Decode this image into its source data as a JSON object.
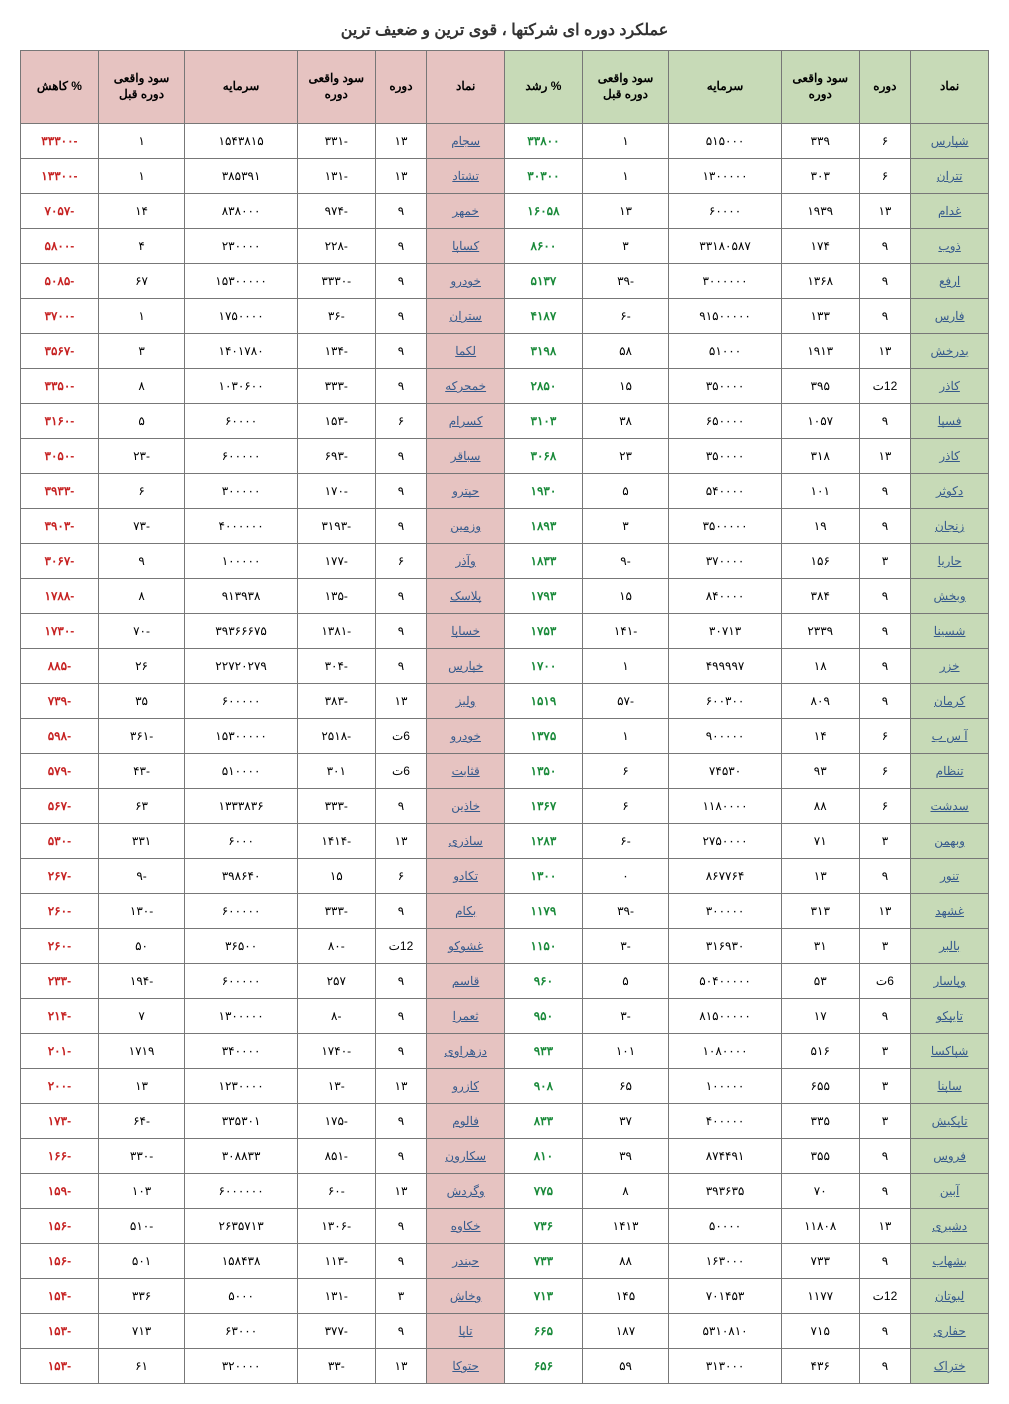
{
  "title": "عملکرد دوره ای شرکتها ، قوی ترین و ضعیف ترین",
  "headers": {
    "symbol": "نماد",
    "period": "دوره",
    "real_profit_period": "سود واقعی دوره",
    "capital": "سرمایه",
    "real_profit_prev": "سود واقعی دوره قبل",
    "growth_pct": "% رشد",
    "decline_pct": "% کاهش"
  },
  "rows": [
    {
      "g_sym": "شپارس",
      "g_per": "۶",
      "g_prof": "۳۳۹",
      "g_cap": "۵۱۵۰۰۰",
      "g_prev": "۱",
      "g_pct": "۳۳۸۰۰",
      "r_sym": "سجام",
      "r_per": "۱۳",
      "r_prof": "-۳۳۱",
      "r_cap": "۱۵۴۳۸۱۵",
      "r_prev": "۱",
      "r_pct": "-۳۳۳۰۰"
    },
    {
      "g_sym": "تتران",
      "g_per": "۶",
      "g_prof": "۳۰۳",
      "g_cap": "۱۳۰۰۰۰۰",
      "g_prev": "۱",
      "g_pct": "۳۰۳۰۰",
      "r_sym": "تشتاد",
      "r_per": "۱۳",
      "r_prof": "-۱۳۱",
      "r_cap": "۳۸۵۳۹۱",
      "r_prev": "۱",
      "r_pct": "-۱۳۳۰۰"
    },
    {
      "g_sym": "غدام",
      "g_per": "۱۳",
      "g_prof": "۱۹۳۹",
      "g_cap": "۶۰۰۰۰",
      "g_prev": "۱۳",
      "g_pct": "۱۶۰۵۸",
      "r_sym": "خمهر",
      "r_per": "۹",
      "r_prof": "-۹۷۴",
      "r_cap": "۸۳۸۰۰۰",
      "r_prev": "۱۴",
      "r_pct": "-۷۰۵۷"
    },
    {
      "g_sym": "ذوب",
      "g_per": "۹",
      "g_prof": "۱۷۴",
      "g_cap": "۳۳۱۸۰۵۸۷",
      "g_prev": "۳",
      "g_pct": "۸۶۰۰",
      "r_sym": "کساپا",
      "r_per": "۹",
      "r_prof": "-۲۲۸",
      "r_cap": "۲۳۰۰۰۰",
      "r_prev": "۴",
      "r_pct": "-۵۸۰۰"
    },
    {
      "g_sym": "ارفع",
      "g_per": "۹",
      "g_prof": "۱۳۶۸",
      "g_cap": "۳۰۰۰۰۰۰",
      "g_prev": "-۳۹",
      "g_pct": "۵۱۳۷",
      "r_sym": "خودرو",
      "r_per": "۹",
      "r_prof": "-۳۳۳۰",
      "r_cap": "۱۵۳۰۰۰۰۰",
      "r_prev": "۶۷",
      "r_pct": "-۵۰۸۵"
    },
    {
      "g_sym": "فارس",
      "g_per": "۹",
      "g_prof": "۱۳۳",
      "g_cap": "۹۱۵۰۰۰۰۰",
      "g_prev": "-۶",
      "g_pct": "۴۱۸۷",
      "r_sym": "ستران",
      "r_per": "۹",
      "r_prof": "-۳۶",
      "r_cap": "۱۷۵۰۰۰۰",
      "r_prev": "۱",
      "r_pct": "-۳۷۰۰"
    },
    {
      "g_sym": "بدرخش",
      "g_per": "۱۳",
      "g_prof": "۱۹۱۳",
      "g_cap": "۵۱۰۰۰",
      "g_prev": "۵۸",
      "g_pct": "۳۱۹۸",
      "r_sym": "لکما",
      "r_per": "۹",
      "r_prof": "-۱۳۴",
      "r_cap": "۱۴۰۱۷۸۰",
      "r_prev": "۳",
      "r_pct": "-۳۵۶۷"
    },
    {
      "g_sym": "کاذر",
      "g_per": "12ت",
      "g_prof": "۳۹۵",
      "g_cap": "۳۵۰۰۰۰",
      "g_prev": "۱۵",
      "g_pct": "۲۸۵۰",
      "r_sym": "خمحرکه",
      "r_per": "۹",
      "r_prof": "-۳۳۳",
      "r_cap": "۱۰۳۰۶۰۰",
      "r_prev": "۸",
      "r_pct": "-۳۳۵۰"
    },
    {
      "g_sym": "فسپا",
      "g_per": "۹",
      "g_prof": "۱۰۵۷",
      "g_cap": "۶۵۰۰۰۰",
      "g_prev": "۳۸",
      "g_pct": "۳۱۰۳",
      "r_sym": "کسرام",
      "r_per": "۶",
      "r_prof": "-۱۵۳",
      "r_cap": "۶۰۰۰۰",
      "r_prev": "۵",
      "r_pct": "-۳۱۶۰"
    },
    {
      "g_sym": "کاذر",
      "g_per": "۱۳",
      "g_prof": "۳۱۸",
      "g_cap": "۳۵۰۰۰۰",
      "g_prev": "۲۳",
      "g_pct": "۳۰۶۸",
      "r_sym": "سباقر",
      "r_per": "۹",
      "r_prof": "-۶۹۳",
      "r_cap": "۶۰۰۰۰۰",
      "r_prev": "-۲۳",
      "r_pct": "-۳۰۵۰"
    },
    {
      "g_sym": "دکوثر",
      "g_per": "۹",
      "g_prof": "۱۰۱",
      "g_cap": "۵۴۰۰۰۰",
      "g_prev": "۵",
      "g_pct": "۱۹۳۰",
      "r_sym": "حپترو",
      "r_per": "۹",
      "r_prof": "-۱۷۰",
      "r_cap": "۳۰۰۰۰۰",
      "r_prev": "۶",
      "r_pct": "-۳۹۳۳"
    },
    {
      "g_sym": "زنجان",
      "g_per": "۹",
      "g_prof": "۱۹",
      "g_cap": "۳۵۰۰۰۰۰",
      "g_prev": "۳",
      "g_pct": "۱۸۹۳",
      "r_sym": "وزمین",
      "r_per": "۹",
      "r_prof": "-۳۱۹۳",
      "r_cap": "۴۰۰۰۰۰۰",
      "r_prev": "-۷۳",
      "r_pct": "-۳۹۰۳"
    },
    {
      "g_sym": "حاریا",
      "g_per": "۳",
      "g_prof": "۱۵۶",
      "g_cap": "۳۷۰۰۰۰",
      "g_prev": "-۹",
      "g_pct": "۱۸۳۳",
      "r_sym": "وآذر",
      "r_per": "۶",
      "r_prof": "-۱۷۷",
      "r_cap": "۱۰۰۰۰۰",
      "r_prev": "۹",
      "r_pct": "-۳۰۶۷"
    },
    {
      "g_sym": "وبخش",
      "g_per": "۹",
      "g_prof": "۳۸۴",
      "g_cap": "۸۴۰۰۰۰",
      "g_prev": "۱۵",
      "g_pct": "۱۷۹۳",
      "r_sym": "پلاسک",
      "r_per": "۹",
      "r_prof": "-۱۳۵",
      "r_cap": "۹۱۳۹۳۸",
      "r_prev": "۸",
      "r_pct": "-۱۷۸۸"
    },
    {
      "g_sym": "شسینا",
      "g_per": "۹",
      "g_prof": "۲۳۳۹",
      "g_cap": "۳۰۷۱۳",
      "g_prev": "-۱۴۱",
      "g_pct": "۱۷۵۳",
      "r_sym": "خساپا",
      "r_per": "۹",
      "r_prof": "-۱۳۸۱",
      "r_cap": "۳۹۳۶۶۶۷۵",
      "r_prev": "-۷۰",
      "r_pct": "-۱۷۳۰"
    },
    {
      "g_sym": "خزر",
      "g_per": "۹",
      "g_prof": "۱۸",
      "g_cap": "۴۹۹۹۹۷",
      "g_prev": "۱",
      "g_pct": "۱۷۰۰",
      "r_sym": "خپارس",
      "r_per": "۹",
      "r_prof": "-۳۰۴",
      "r_cap": "۲۲۷۲۰۲۷۹",
      "r_prev": "۲۶",
      "r_pct": "-۸۸۵"
    },
    {
      "g_sym": "کرمان",
      "g_per": "۹",
      "g_prof": "۸۰۹",
      "g_cap": "۶۰۰۳۰۰",
      "g_prev": "-۵۷",
      "g_pct": "۱۵۱۹",
      "r_sym": "ولیز",
      "r_per": "۱۳",
      "r_prof": "-۳۸۳",
      "r_cap": "۶۰۰۰۰۰",
      "r_prev": "۳۵",
      "r_pct": "-۷۳۹"
    },
    {
      "g_sym": "آ س ب",
      "g_per": "۶",
      "g_prof": "۱۴",
      "g_cap": "۹۰۰۰۰۰",
      "g_prev": "۱",
      "g_pct": "۱۳۷۵",
      "r_sym": "خودرو",
      "r_per": "6ت",
      "r_prof": "-۲۵۱۸",
      "r_cap": "۱۵۳۰۰۰۰۰",
      "r_prev": "-۳۶۱",
      "r_pct": "-۵۹۸"
    },
    {
      "g_sym": "تنظام",
      "g_per": "۶",
      "g_prof": "۹۳",
      "g_cap": "۷۴۵۳۰",
      "g_prev": "۶",
      "g_pct": "۱۳۵۰",
      "r_sym": "قثابت",
      "r_per": "6ت",
      "r_prof": "۳۰۱",
      "r_cap": "۵۱۰۰۰۰",
      "r_prev": "-۴۳",
      "r_pct": "-۵۷۹"
    },
    {
      "g_sym": "سدشت",
      "g_per": "۶",
      "g_prof": "۸۸",
      "g_cap": "۱۱۸۰۰۰۰",
      "g_prev": "۶",
      "g_pct": "۱۳۶۷",
      "r_sym": "خاذین",
      "r_per": "۹",
      "r_prof": "-۳۳۳",
      "r_cap": "۱۳۳۳۸۳۶",
      "r_prev": "۶۳",
      "r_pct": "-۵۶۷"
    },
    {
      "g_sym": "وبهمن",
      "g_per": "۳",
      "g_prof": "۷۱",
      "g_cap": "۲۷۵۰۰۰۰",
      "g_prev": "-۶",
      "g_pct": "۱۲۸۳",
      "r_sym": "ساذری",
      "r_per": "۱۳",
      "r_prof": "-۱۴۱۴",
      "r_cap": "۶۰۰۰",
      "r_prev": "۳۳۱",
      "r_pct": "-۵۳۰"
    },
    {
      "g_sym": "تنور",
      "g_per": "۹",
      "g_prof": "۱۳",
      "g_cap": "۸۶۷۷۶۴",
      "g_prev": "۰",
      "g_pct": "۱۳۰۰",
      "r_sym": "تکادو",
      "r_per": "۶",
      "r_prof": "۱۵",
      "r_cap": "۳۹۸۶۴۰",
      "r_prev": "-۹",
      "r_pct": "-۲۶۷"
    },
    {
      "g_sym": "غشهد",
      "g_per": "۱۳",
      "g_prof": "۳۱۳",
      "g_cap": "۳۰۰۰۰۰",
      "g_prev": "-۳۹",
      "g_pct": "۱۱۷۹",
      "r_sym": "بکام",
      "r_per": "۹",
      "r_prof": "-۳۳۳",
      "r_cap": "۶۰۰۰۰۰",
      "r_prev": "-۱۳۰",
      "r_pct": "-۲۶۰"
    },
    {
      "g_sym": "بالبر",
      "g_per": "۳",
      "g_prof": "۳۱",
      "g_cap": "۳۱۶۹۳۰",
      "g_prev": "-۳",
      "g_pct": "۱۱۵۰",
      "r_sym": "غشوکو",
      "r_per": "12ت",
      "r_prof": "-۸۰",
      "r_cap": "۳۶۵۰۰",
      "r_prev": "۵۰",
      "r_pct": "-۲۶۰"
    },
    {
      "g_sym": "وپاسار",
      "g_per": "6ت",
      "g_prof": "۵۳",
      "g_cap": "۵۰۴۰۰۰۰۰",
      "g_prev": "۵",
      "g_pct": "۹۶۰",
      "r_sym": "قاسم",
      "r_per": "۹",
      "r_prof": "۲۵۷",
      "r_cap": "۶۰۰۰۰۰",
      "r_prev": "-۱۹۴",
      "r_pct": "-۲۳۳"
    },
    {
      "g_sym": "تایپکو",
      "g_per": "۹",
      "g_prof": "۱۷",
      "g_cap": "۸۱۵۰۰۰۰۰",
      "g_prev": "-۳",
      "g_pct": "۹۵۰",
      "r_sym": "ثعمرا",
      "r_per": "۹",
      "r_prof": "-۸",
      "r_cap": "۱۳۰۰۰۰۰",
      "r_prev": "۷",
      "r_pct": "-۲۱۴"
    },
    {
      "g_sym": "شپاکسا",
      "g_per": "۳",
      "g_prof": "۵۱۶",
      "g_cap": "۱۰۸۰۰۰۰",
      "g_prev": "۱۰۱",
      "g_pct": "۹۳۳",
      "r_sym": "دزهراوی",
      "r_per": "۹",
      "r_prof": "-۱۷۴۰",
      "r_cap": "۳۴۰۰۰۰",
      "r_prev": "۱۷۱۹",
      "r_pct": "-۲۰۱"
    },
    {
      "g_sym": "ساپنا",
      "g_per": "۳",
      "g_prof": "۶۵۵",
      "g_cap": "۱۰۰۰۰۰",
      "g_prev": "۶۵",
      "g_pct": "۹۰۸",
      "r_sym": "کازرو",
      "r_per": "۱۳",
      "r_prof": "-۱۳",
      "r_cap": "۱۲۳۰۰۰۰",
      "r_prev": "۱۳",
      "r_pct": "-۲۰۰"
    },
    {
      "g_sym": "تاپکیش",
      "g_per": "۳",
      "g_prof": "۳۳۵",
      "g_cap": "۴۰۰۰۰۰",
      "g_prev": "۳۷",
      "g_pct": "۸۳۳",
      "r_sym": "فالوم",
      "r_per": "۹",
      "r_prof": "-۱۷۵",
      "r_cap": "۳۳۵۳۰۱",
      "r_prev": "-۶۴",
      "r_pct": "-۱۷۳"
    },
    {
      "g_sym": "فروس",
      "g_per": "۹",
      "g_prof": "۳۵۵",
      "g_cap": "۸۷۴۴۹۱",
      "g_prev": "۳۹",
      "g_pct": "۸۱۰",
      "r_sym": "سکارون",
      "r_per": "۹",
      "r_prof": "-۸۵۱",
      "r_cap": "۳۰۸۸۳۳",
      "r_prev": "-۳۳۰",
      "r_pct": "-۱۶۶"
    },
    {
      "g_sym": "آبین",
      "g_per": "۹",
      "g_prof": "۷۰",
      "g_cap": "۳۹۳۶۳۵",
      "g_prev": "۸",
      "g_pct": "۷۷۵",
      "r_sym": "وگردش",
      "r_per": "۱۳",
      "r_prof": "-۶۰",
      "r_cap": "۶۰۰۰۰۰۰",
      "r_prev": "۱۰۳",
      "r_pct": "-۱۵۹"
    },
    {
      "g_sym": "دشیری",
      "g_per": "۱۳",
      "g_prof": "۱۱۸۰۸",
      "g_cap": "۵۰۰۰۰",
      "g_prev": "۱۴۱۳",
      "g_pct": "۷۳۶",
      "r_sym": "خکاوه",
      "r_per": "۹",
      "r_prof": "-۱۳۰۶",
      "r_cap": "۲۶۳۵۷۱۳",
      "r_prev": "-۵۱۰",
      "r_pct": "-۱۵۶"
    },
    {
      "g_sym": "بشهاب",
      "g_per": "۹",
      "g_prof": "۷۳۳",
      "g_cap": "۱۶۳۰۰۰",
      "g_prev": "۸۸",
      "g_pct": "۷۳۳",
      "r_sym": "حبندر",
      "r_per": "۹",
      "r_prof": "-۱۱۳",
      "r_cap": "۱۵۸۴۳۸",
      "r_prev": "۵۰۱",
      "r_pct": "-۱۵۶"
    },
    {
      "g_sym": "لبوتان",
      "g_per": "12ت",
      "g_prof": "۱۱۷۷",
      "g_cap": "۷۰۱۴۵۳",
      "g_prev": "۱۴۵",
      "g_pct": "۷۱۳",
      "r_sym": "وخاش",
      "r_per": "۳",
      "r_prof": "-۱۳۱",
      "r_cap": "۵۰۰۰",
      "r_prev": "۳۳۶",
      "r_pct": "-۱۵۴"
    },
    {
      "g_sym": "حفاری",
      "g_per": "۹",
      "g_prof": "۷۱۵",
      "g_cap": "۵۳۱۰۸۱۰",
      "g_prev": "۱۸۷",
      "g_pct": "۶۶۵",
      "r_sym": "تاپا",
      "r_per": "۹",
      "r_prof": "-۳۷۷",
      "r_cap": "۶۳۰۰۰",
      "r_prev": "۷۱۳",
      "r_pct": "-۱۵۳"
    },
    {
      "g_sym": "ختراک",
      "g_per": "۹",
      "g_prof": "۴۳۶",
      "g_cap": "۳۱۳۰۰۰",
      "g_prev": "۵۹",
      "g_pct": "۶۵۶",
      "r_sym": "حتوکا",
      "r_per": "۱۳",
      "r_prof": "-۳۳",
      "r_cap": "۳۲۰۰۰۰",
      "r_prev": "۶۱",
      "r_pct": "-۱۵۳"
    }
  ]
}
